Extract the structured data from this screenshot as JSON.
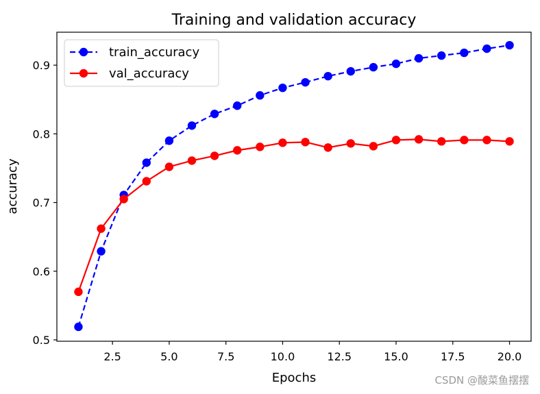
{
  "chart_data": {
    "type": "line",
    "title": "Training and validation accuracy",
    "xlabel": "Epochs",
    "ylabel": "accuracy",
    "xlim": [
      0.05,
      20.95
    ],
    "ylim": [
      0.498,
      0.948
    ],
    "x_ticks": [
      2.5,
      5.0,
      7.5,
      10.0,
      12.5,
      15.0,
      17.5,
      20.0
    ],
    "x_tick_labels": [
      "2.5",
      "5.0",
      "7.5",
      "10.0",
      "12.5",
      "15.0",
      "17.5",
      "20.0"
    ],
    "y_ticks": [
      0.5,
      0.6,
      0.7,
      0.8,
      0.9
    ],
    "y_tick_labels": [
      "0.5",
      "0.6",
      "0.7",
      "0.8",
      "0.9"
    ],
    "grid": false,
    "legend_position": "top-left",
    "x": [
      1,
      2,
      3,
      4,
      5,
      6,
      7,
      8,
      9,
      10,
      11,
      12,
      13,
      14,
      15,
      16,
      17,
      18,
      19,
      20
    ],
    "series": [
      {
        "name": "train_accuracy",
        "color": "#0000ff",
        "line_style": "dashed",
        "marker": "circle",
        "values": [
          0.519,
          0.629,
          0.711,
          0.758,
          0.79,
          0.812,
          0.829,
          0.841,
          0.856,
          0.867,
          0.875,
          0.884,
          0.891,
          0.897,
          0.902,
          0.91,
          0.914,
          0.918,
          0.924,
          0.929
        ]
      },
      {
        "name": "val_accuracy",
        "color": "#ff0000",
        "line_style": "solid",
        "marker": "circle",
        "values": [
          0.57,
          0.662,
          0.705,
          0.731,
          0.752,
          0.761,
          0.768,
          0.776,
          0.781,
          0.787,
          0.788,
          0.78,
          0.786,
          0.782,
          0.791,
          0.792,
          0.789,
          0.791,
          0.791,
          0.789
        ]
      }
    ]
  },
  "watermark": "CSDN @酸菜鱼摆摆"
}
